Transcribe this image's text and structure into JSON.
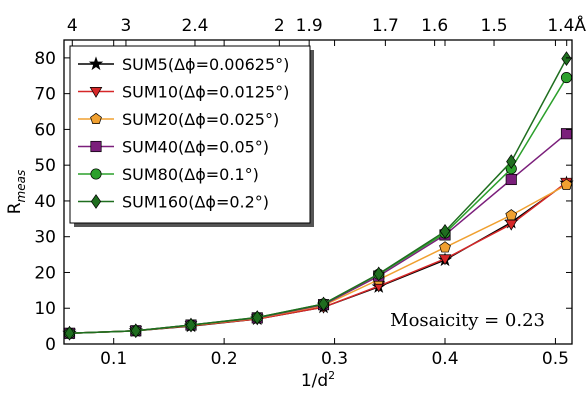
{
  "chart_data": {
    "type": "line",
    "xlabel": "1/d²",
    "ylabel": "R_meas",
    "xlim": [
      0.055,
      0.515
    ],
    "ylim": [
      0,
      85
    ],
    "x_ticks": [
      "0.1",
      "0.2",
      "0.3",
      "0.4",
      "0.5"
    ],
    "x_tick_values": [
      0.1,
      0.2,
      0.3,
      0.4,
      0.5
    ],
    "y_ticks": [
      "0",
      "10",
      "20",
      "30",
      "40",
      "50",
      "60",
      "70",
      "80"
    ],
    "y_tick_values": [
      0,
      10,
      20,
      30,
      40,
      50,
      60,
      70,
      80
    ],
    "top_axis_labels": [
      "4",
      "3",
      "2.4",
      "2",
      "1.9",
      "1.7",
      "1.6",
      "1.5",
      "1.4Å"
    ],
    "top_axis_positions": [
      0.0625,
      0.1111,
      0.1736,
      0.25,
      0.277,
      0.346,
      0.3906,
      0.4444,
      0.5102
    ],
    "grid": false,
    "legend_position": "top-left",
    "annotation": "Mosaicity = 0.23",
    "x": [
      0.06,
      0.12,
      0.17,
      0.23,
      0.29,
      0.34,
      0.4,
      0.46,
      0.51
    ],
    "series": [
      {
        "name": "SUM5(Δϕ=0.00625°)",
        "color": "#000000",
        "marker": "star",
        "values": [
          3.0,
          3.7,
          5.0,
          7.0,
          10.3,
          16.0,
          23.5,
          34.0,
          45.0
        ]
      },
      {
        "name": "SUM10(Δϕ=0.0125°)",
        "color": "#d62728",
        "marker": "triangle-down",
        "values": [
          3.0,
          3.7,
          5.1,
          7.0,
          10.3,
          16.2,
          23.8,
          33.5,
          45.2
        ]
      },
      {
        "name": "SUM20(Δϕ=0.025°)",
        "color": "#f0a030",
        "marker": "pentagon",
        "values": [
          3.0,
          3.7,
          5.2,
          7.2,
          10.8,
          18.0,
          27.0,
          36.0,
          44.5
        ]
      },
      {
        "name": "SUM40(Δϕ=0.05°)",
        "color": "#7b1f7b",
        "marker": "square",
        "values": [
          3.0,
          3.7,
          5.3,
          7.3,
          11.0,
          19.0,
          30.5,
          46.0,
          58.8
        ]
      },
      {
        "name": "SUM80(Δϕ=0.1°)",
        "color": "#2ca02c",
        "marker": "circle",
        "values": [
          3.0,
          3.7,
          5.3,
          7.4,
          11.2,
          19.5,
          31.0,
          49.0,
          74.5
        ]
      },
      {
        "name": "SUM160(Δϕ=0.2°)",
        "color": "#1f6e1f",
        "marker": "diamond",
        "values": [
          3.0,
          3.7,
          5.3,
          7.4,
          11.2,
          19.6,
          31.5,
          51.0,
          79.8
        ]
      }
    ]
  }
}
